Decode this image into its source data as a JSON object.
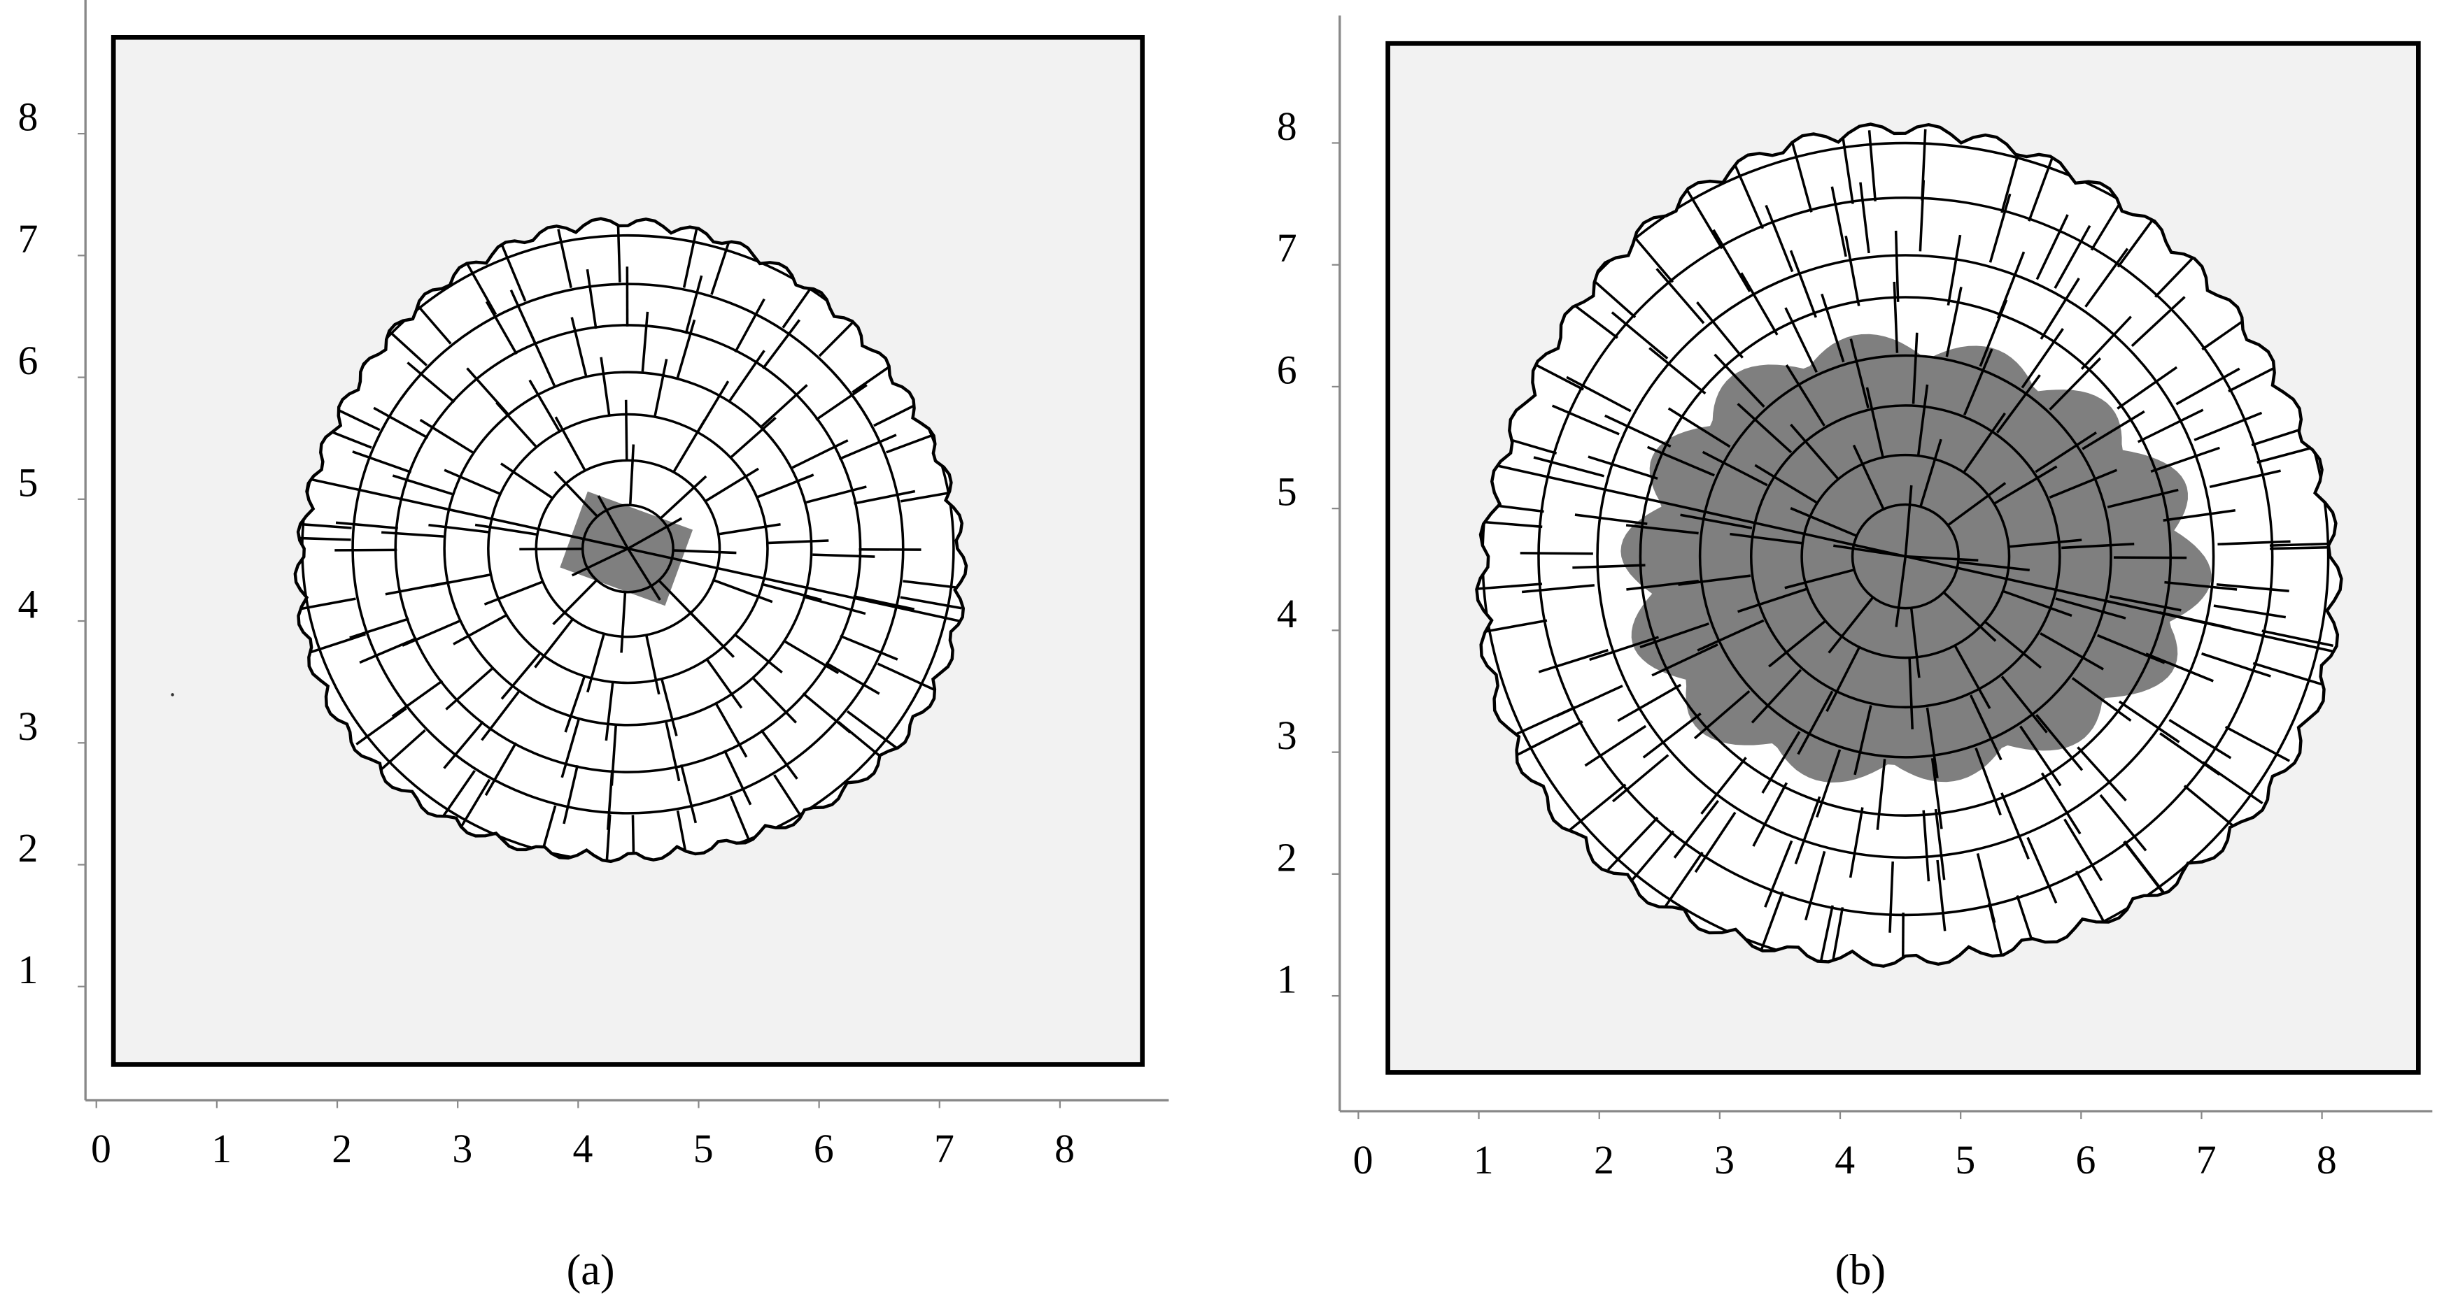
{
  "panels": [
    {
      "caption": "(a)",
      "xticks": [
        0,
        1,
        2,
        3,
        4,
        5,
        6,
        7,
        8
      ],
      "yticks": [
        1,
        2,
        3,
        4,
        5,
        6,
        7,
        8
      ]
    },
    {
      "caption": "(b)",
      "xticks": [
        0,
        1,
        2,
        3,
        4,
        5,
        6,
        7,
        8
      ],
      "yticks": [
        1,
        2,
        3,
        4,
        5,
        6,
        7,
        8
      ]
    }
  ]
}
